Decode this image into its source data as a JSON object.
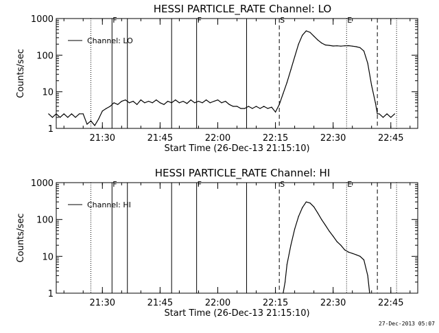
{
  "footer": {
    "timestamp": "27-Dec-2013 05:07"
  },
  "colors": {
    "line": "#000000",
    "background": "#ffffff"
  },
  "chart_data": [
    {
      "type": "line",
      "title": "HESSI PARTICLE_RATE Channel: LO",
      "xlabel": "Start Time (26-Dec-13 21:15:10)",
      "ylabel": "Counts/sec",
      "yscale": "log",
      "xlim_min": [
        21.3,
        22.9
      ],
      "ylim": [
        1,
        1000
      ],
      "xticks": [
        "21:30",
        "21:45",
        "22:00",
        "22:15",
        "22:30",
        "22:45"
      ],
      "xtick_min": [
        1290,
        1305,
        1320,
        1335,
        1350,
        1365
      ],
      "yticks": [
        "1",
        "10",
        "100",
        "1000"
      ],
      "ytick_vals": [
        1,
        10,
        100,
        1000
      ],
      "legend": {
        "label": "Channel: LO",
        "position": "top-left"
      },
      "markers": [
        {
          "label": "F",
          "time_min": 1292.5,
          "style": "solid"
        },
        {
          "label": "F",
          "time_min": 1314.5,
          "style": "solid"
        },
        {
          "label": "S",
          "time_min": 1336.0,
          "style": "dashed"
        },
        {
          "label": "E",
          "time_min": 1353.5,
          "style": "dotted"
        }
      ],
      "vlines": [
        {
          "time_min": 1287.0,
          "style": "dotted"
        },
        {
          "time_min": 1292.5,
          "style": "solid"
        },
        {
          "time_min": 1296.5,
          "style": "solid"
        },
        {
          "time_min": 1308.0,
          "style": "solid"
        },
        {
          "time_min": 1314.5,
          "style": "solid"
        },
        {
          "time_min": 1327.5,
          "style": "solid"
        },
        {
          "time_min": 1336.0,
          "style": "dashed"
        },
        {
          "time_min": 1353.5,
          "style": "dotted"
        },
        {
          "time_min": 1361.5,
          "style": "dashed"
        },
        {
          "time_min": 1366.5,
          "style": "dotted"
        }
      ],
      "series": [
        {
          "name": "Channel: LO",
          "x_min": [
            1276,
            1277,
            1278,
            1279,
            1280,
            1281,
            1282,
            1283,
            1284,
            1285,
            1286,
            1287,
            1288,
            1289,
            1290,
            1291,
            1292,
            1293,
            1294,
            1295,
            1296,
            1297,
            1298,
            1299,
            1300,
            1301,
            1302,
            1303,
            1304,
            1305,
            1306,
            1307,
            1308,
            1309,
            1310,
            1311,
            1312,
            1313,
            1314,
            1315,
            1316,
            1317,
            1318,
            1319,
            1320,
            1321,
            1322,
            1323,
            1324,
            1325,
            1326,
            1327,
            1328,
            1329,
            1330,
            1331,
            1332,
            1333,
            1334,
            1335,
            1336,
            1337,
            1338,
            1339,
            1340,
            1341,
            1342,
            1343,
            1344,
            1345,
            1346,
            1347,
            1348,
            1349,
            1350,
            1351,
            1352,
            1353,
            1354,
            1355,
            1356,
            1357,
            1358,
            1359,
            1360,
            1361,
            1361.5,
            1362,
            1363,
            1364,
            1365,
            1366
          ],
          "values": [
            2.5,
            2.0,
            2.5,
            2.0,
            2.5,
            2.0,
            2.5,
            2.0,
            2.5,
            2.5,
            1.3,
            1.6,
            1.2,
            1.8,
            3.0,
            3.5,
            4.0,
            5.0,
            4.5,
            5.5,
            6.0,
            5.0,
            5.5,
            4.5,
            6.0,
            5.0,
            5.5,
            5.0,
            6.0,
            5.0,
            4.5,
            5.5,
            5.0,
            6.0,
            5.0,
            5.5,
            4.8,
            6.0,
            5.0,
            5.5,
            5.0,
            6.0,
            5.0,
            5.5,
            6.0,
            5.0,
            5.5,
            4.5,
            4.0,
            4.0,
            3.5,
            3.5,
            4.0,
            3.5,
            4.0,
            3.5,
            4.0,
            3.5,
            3.8,
            2.8,
            4.5,
            9.0,
            18,
            40,
            90,
            200,
            350,
            460,
            420,
            330,
            260,
            215,
            190,
            185,
            178,
            180,
            176,
            180,
            182,
            176,
            170,
            160,
            130,
            60,
            15,
            5.0,
            2.5,
            2.5,
            2.0,
            2.5,
            2.0,
            2.5
          ]
        }
      ]
    },
    {
      "type": "line",
      "title": "HESSI PARTICLE_RATE Channel: HI",
      "xlabel": "Start Time (26-Dec-13 21:15:10)",
      "ylabel": "Counts/sec",
      "yscale": "log",
      "xlim_min": [
        21.3,
        22.9
      ],
      "ylim": [
        1,
        1000
      ],
      "xticks": [
        "21:30",
        "21:45",
        "22:00",
        "22:15",
        "22:30",
        "22:45"
      ],
      "xtick_min": [
        1290,
        1305,
        1320,
        1335,
        1350,
        1365
      ],
      "yticks": [
        "1",
        "10",
        "100",
        "1000"
      ],
      "ytick_vals": [
        1,
        10,
        100,
        1000
      ],
      "legend": {
        "label": "Channel: HI",
        "position": "top-left"
      },
      "markers": [
        {
          "label": "F",
          "time_min": 1292.5,
          "style": "solid"
        },
        {
          "label": "F",
          "time_min": 1314.5,
          "style": "solid"
        },
        {
          "label": "S",
          "time_min": 1336.0,
          "style": "dashed"
        },
        {
          "label": "E",
          "time_min": 1353.5,
          "style": "dotted"
        }
      ],
      "vlines": [
        {
          "time_min": 1287.0,
          "style": "dotted"
        },
        {
          "time_min": 1292.5,
          "style": "solid"
        },
        {
          "time_min": 1296.5,
          "style": "solid"
        },
        {
          "time_min": 1308.0,
          "style": "solid"
        },
        {
          "time_min": 1314.5,
          "style": "solid"
        },
        {
          "time_min": 1327.5,
          "style": "solid"
        },
        {
          "time_min": 1336.0,
          "style": "dashed"
        },
        {
          "time_min": 1353.5,
          "style": "dotted"
        },
        {
          "time_min": 1361.5,
          "style": "dashed"
        },
        {
          "time_min": 1366.5,
          "style": "dotted"
        }
      ],
      "series": [
        {
          "name": "Channel: HI",
          "x_min": [
            1337.0,
            1337.5,
            1338,
            1339,
            1340,
            1341,
            1342,
            1343,
            1344,
            1345,
            1346,
            1347,
            1348,
            1349,
            1350,
            1351,
            1352,
            1353,
            1354,
            1355,
            1356,
            1357,
            1358,
            1359,
            1359.5
          ],
          "values": [
            1.0,
            2.0,
            6.0,
            20,
            55,
            120,
            210,
            300,
            280,
            220,
            150,
            100,
            70,
            48,
            35,
            25,
            20,
            15,
            13,
            12,
            11,
            10,
            8,
            3,
            1.0
          ]
        }
      ]
    }
  ]
}
